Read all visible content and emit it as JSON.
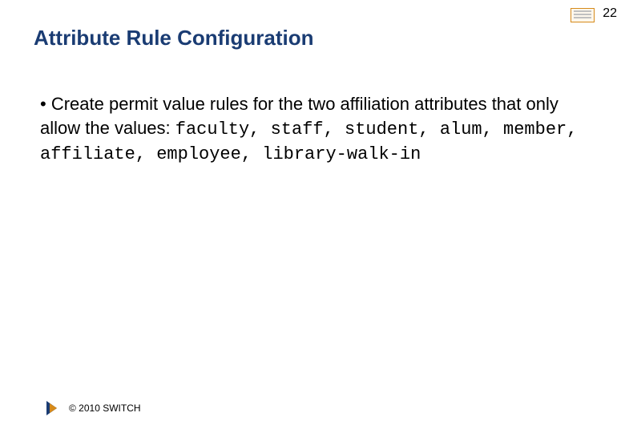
{
  "slide_number": "22",
  "title": "Attribute Rule Configuration",
  "bullet": {
    "lead_text": "Create permit value rules for the two affiliation attributes that only allow the values: ",
    "values_line1": "faculty, staff, student, alum, member, affiliate, employee, library-walk-in"
  },
  "footer": {
    "copyright": "© 2010 SWITCH"
  },
  "colors": {
    "title_color": "#1a3c73",
    "accent_gold": "#d68a1a",
    "text_color": "#000000",
    "background": "#ffffff"
  },
  "fonts": {
    "title_size_pt": 20,
    "body_size_pt": 17,
    "footer_size_pt": 9,
    "mono_family": "Courier New"
  }
}
